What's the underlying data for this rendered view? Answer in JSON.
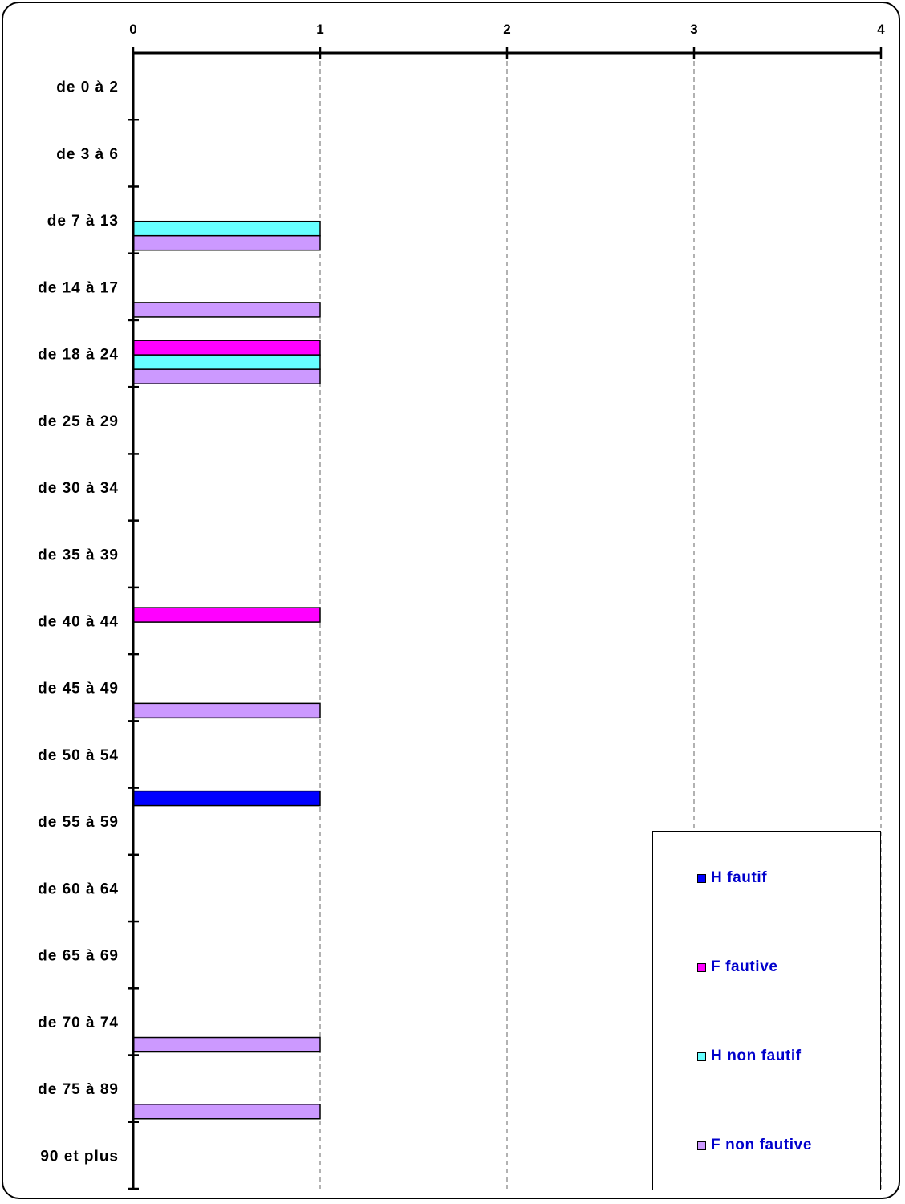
{
  "chart_data": {
    "type": "bar",
    "orientation": "horizontal",
    "categories": [
      "de 0 à 2",
      "de 3 à 6",
      "de 7 à 13",
      "de 14 à 17",
      "de 18 à 24",
      "de 25 à 29",
      "de 30 à 34",
      "de 35 à 39",
      "de 40 à 44",
      "de 45 à 49",
      "de 50 à 54",
      "de 55 à 59",
      "de 60 à 64",
      "de 65 à 69",
      "de 70 à 74",
      "de 75 à 89",
      "90 et plus"
    ],
    "series": [
      {
        "name": "H fautif",
        "color": "#0000ff",
        "values": [
          0,
          0,
          0,
          0,
          0,
          0,
          0,
          0,
          0,
          0,
          0,
          1,
          0,
          0,
          0,
          0,
          0
        ]
      },
      {
        "name": "F fautive",
        "color": "#ff00ff",
        "values": [
          0,
          0,
          0,
          0,
          1,
          0,
          0,
          0,
          1,
          0,
          0,
          0,
          0,
          0,
          0,
          0,
          0
        ]
      },
      {
        "name": "H non fautif",
        "color": "#66ffff",
        "values": [
          0,
          0,
          1,
          0,
          1,
          0,
          0,
          0,
          0,
          0,
          0,
          0,
          0,
          0,
          0,
          0,
          0
        ]
      },
      {
        "name": "F non fautive",
        "color": "#cc99ff",
        "values": [
          0,
          0,
          1,
          1,
          1,
          0,
          0,
          0,
          0,
          1,
          0,
          0,
          0,
          0,
          1,
          1,
          0
        ]
      }
    ],
    "xticks": [
      "0",
      "1",
      "2",
      "3",
      "4"
    ],
    "xlim": [
      0,
      4
    ],
    "xaxis_position": "top",
    "grid": "vertical dashed",
    "legend_position": "bottom-right"
  }
}
